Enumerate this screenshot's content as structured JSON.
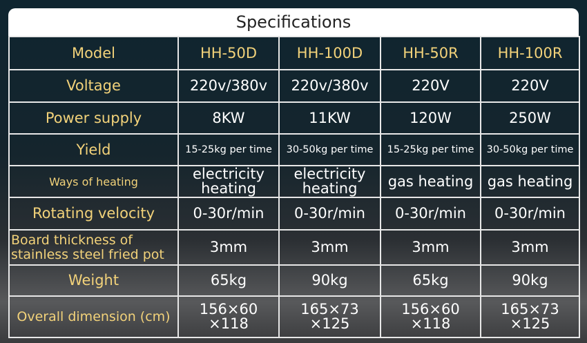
{
  "title": "Specifications",
  "table": {
    "header": [
      "Model",
      "HH-50D",
      "HH-100D",
      "HH-50R",
      "HH-100R"
    ],
    "rows": [
      [
        "Voltage",
        "220v/380v",
        "220v/380v",
        "220V",
        "220V"
      ],
      [
        "Power supply",
        "8KW",
        "11KW",
        "120W",
        "250W"
      ],
      [
        "Yield",
        "15-25kg per time",
        "30-50kg per time",
        "15-25kg per time",
        "30-50kg per time"
      ],
      [
        "Ways of heating",
        "electricity heating",
        "electricity heating",
        "gas heating",
        "gas heating"
      ],
      [
        "Rotating velocity",
        "0-30r/min",
        "0-30r/min",
        "0-30r/min",
        "0-30r/min"
      ],
      [
        "Board thickness of stainless steel fried pot",
        "3mm",
        "3mm",
        "3mm",
        "3mm"
      ],
      [
        "Weight",
        "65kg",
        "90kg",
        "65kg",
        "90kg"
      ],
      [
        "Overall dimension (cm)",
        "156×60 ×118",
        "165×73 ×125",
        "156×60 ×118",
        "165×73 ×125"
      ]
    ]
  }
}
